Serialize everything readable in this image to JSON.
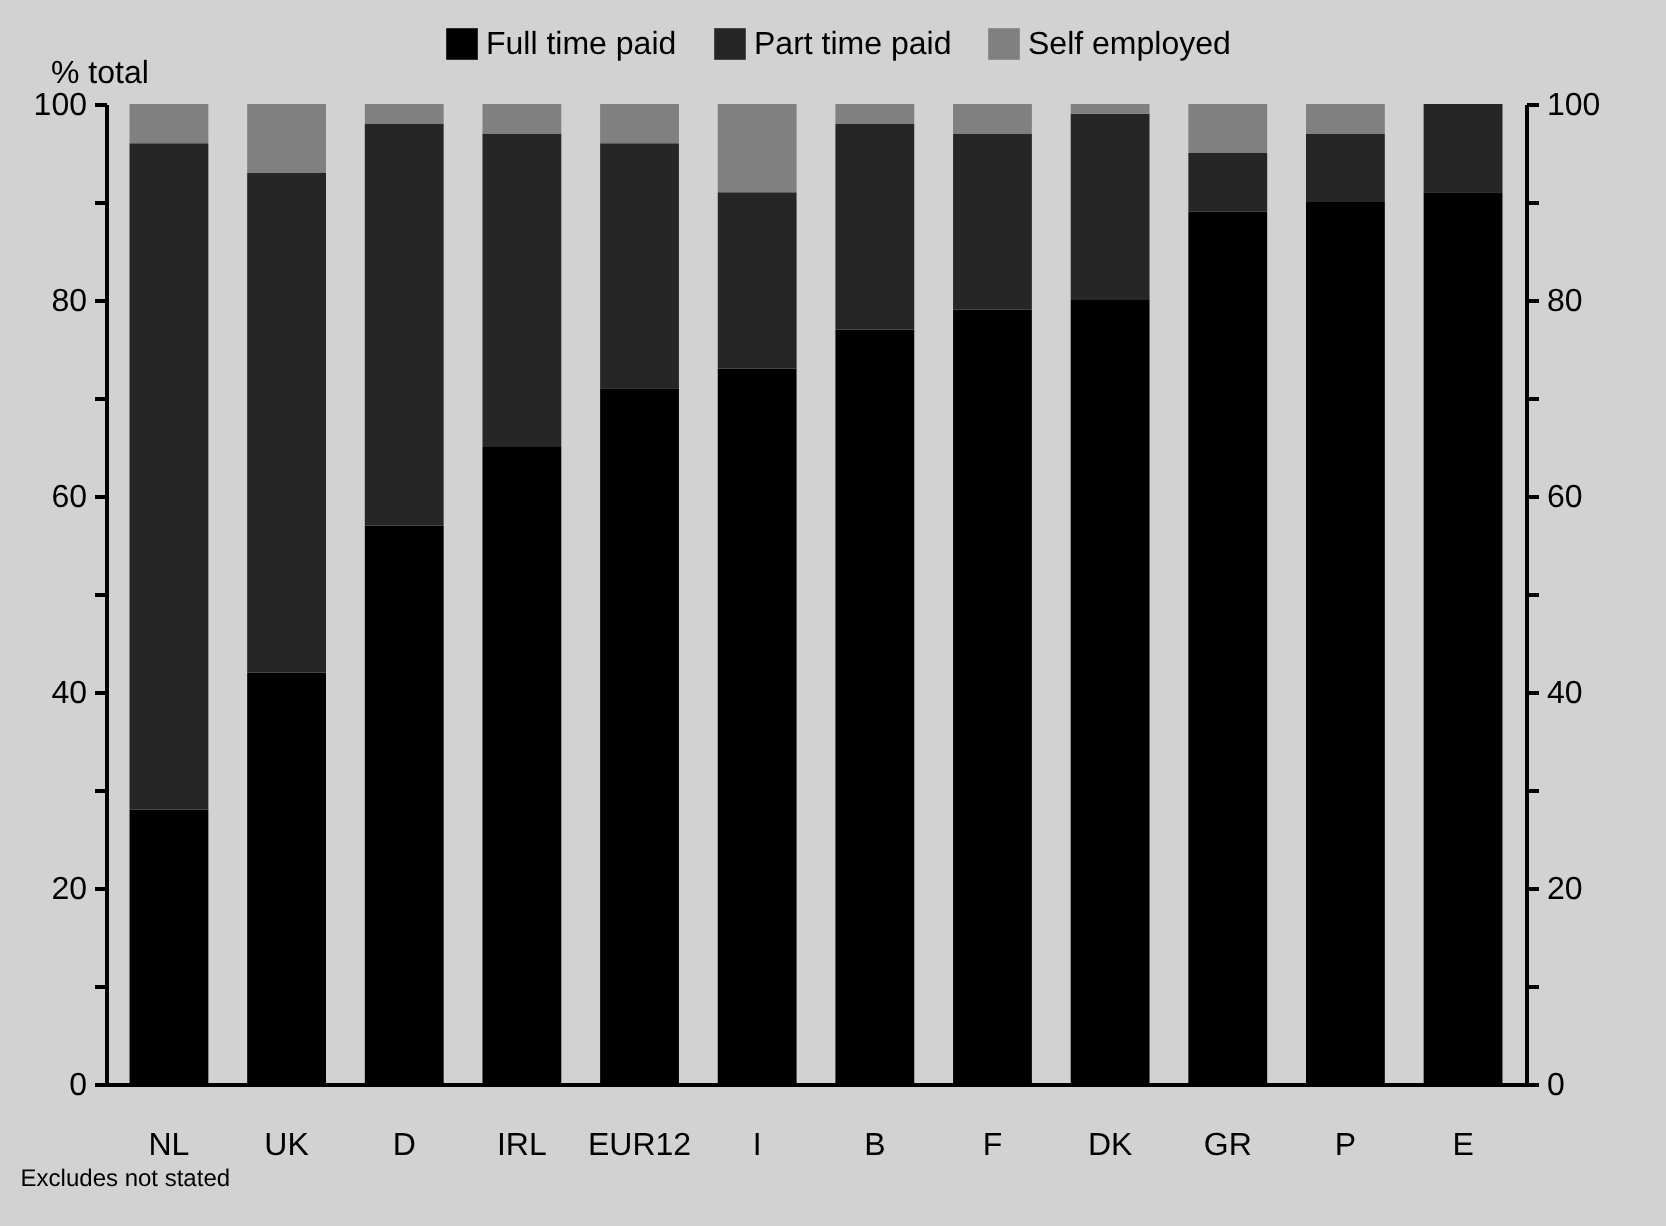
{
  "chart_data": {
    "type": "bar",
    "stacked": true,
    "categories": [
      "NL",
      "UK",
      "D",
      "IRL",
      "EUR12",
      "I",
      "B",
      "F",
      "DK",
      "GR",
      "P",
      "E"
    ],
    "series": [
      {
        "name": "Full time paid",
        "color": "#000000",
        "values": [
          28,
          42,
          57,
          65,
          71,
          73,
          77,
          79,
          80,
          89,
          90,
          91
        ]
      },
      {
        "name": "Part time paid",
        "color": "#262626",
        "values": [
          68,
          51,
          41,
          32,
          25,
          18,
          21,
          18,
          19,
          6,
          7,
          9
        ]
      },
      {
        "name": "Self employed",
        "color": "#808080",
        "values": [
          4,
          7,
          2,
          3,
          4,
          9,
          2,
          3,
          1,
          5,
          3,
          0
        ]
      }
    ],
    "ylabel": "% total",
    "ylim": [
      0,
      100
    ],
    "yticks": [
      0,
      {
        "value": 10,
        "label": null
      },
      20,
      {
        "value": 30,
        "label": null
      },
      40,
      {
        "value": 50,
        "label": null
      },
      60,
      {
        "value": 70,
        "label": null
      },
      80,
      {
        "value": 90,
        "label": null
      },
      100
    ],
    "y2lim": [
      0,
      100
    ],
    "y2ticks": [
      0,
      {
        "value": 10,
        "label": null
      },
      20,
      {
        "value": 30,
        "label": null
      },
      40,
      {
        "value": 50,
        "label": null
      },
      60,
      {
        "value": 70,
        "label": null
      },
      80,
      {
        "value": 90,
        "label": null
      },
      100
    ],
    "legend": "top",
    "grid": false,
    "annotations": [
      "Excludes not stated"
    ]
  }
}
